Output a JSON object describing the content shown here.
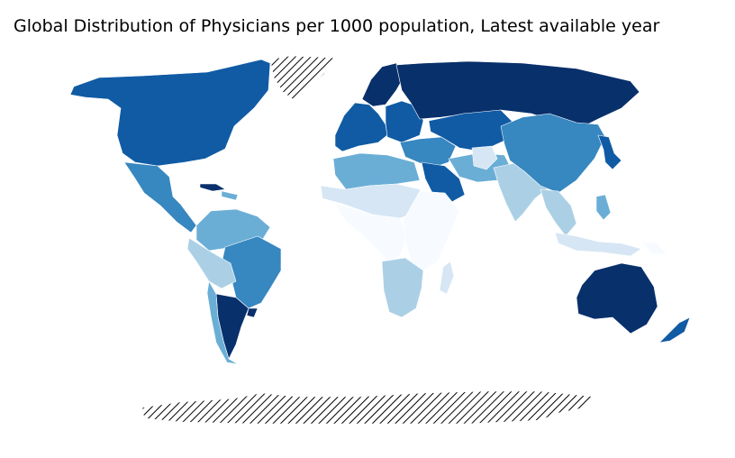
{
  "title": "Global Distribution of Physicians per 1000 population, Latest available year",
  "colors": {
    "level_1": "#f7fbff",
    "level_2": "#d6e6f4",
    "level_3": "#abd0e6",
    "level_4": "#6aaed6",
    "level_5": "#3787c0",
    "level_6": "#105ba4",
    "level_7": "#08306b",
    "no_data_hatch": "#000000"
  },
  "regions": [
    {
      "name": "North America",
      "level": 6
    },
    {
      "name": "Greenland",
      "level": 0
    },
    {
      "name": "Mexico & Central America",
      "level": 5
    },
    {
      "name": "Cuba",
      "level": 7
    },
    {
      "name": "Caribbean",
      "level": 4
    },
    {
      "name": "Northern South America",
      "level": 4
    },
    {
      "name": "Brazil",
      "level": 5
    },
    {
      "name": "Peru & Bolivia",
      "level": 3
    },
    {
      "name": "Argentina",
      "level": 7
    },
    {
      "name": "Chile",
      "level": 4
    },
    {
      "name": "Uruguay",
      "level": 7
    },
    {
      "name": "Western Europe",
      "level": 6
    },
    {
      "name": "Scandinavia",
      "level": 7
    },
    {
      "name": "Eastern Europe",
      "level": 6
    },
    {
      "name": "Russia",
      "level": 7
    },
    {
      "name": "Kazakhstan & Central Asia",
      "level": 6
    },
    {
      "name": "Turkey & Middle East",
      "level": 5
    },
    {
      "name": "Saudi Arabia",
      "level": 6
    },
    {
      "name": "Iran & Pakistan",
      "level": 4
    },
    {
      "name": "Afghanistan",
      "level": 2
    },
    {
      "name": "India",
      "level": 3
    },
    {
      "name": "China & Mongolia",
      "level": 5
    },
    {
      "name": "Korea & Japan",
      "level": 6
    },
    {
      "name": "Southeast Asia",
      "level": 3
    },
    {
      "name": "Indonesia",
      "level": 2
    },
    {
      "name": "Philippines",
      "level": 4
    },
    {
      "name": "North Africa",
      "level": 4
    },
    {
      "name": "Sahel",
      "level": 2
    },
    {
      "name": "West & Central Africa",
      "level": 1
    },
    {
      "name": "East Africa",
      "level": 1
    },
    {
      "name": "Southern Africa",
      "level": 3
    },
    {
      "name": "Madagascar",
      "level": 2
    },
    {
      "name": "Australia",
      "level": 7
    },
    {
      "name": "New Zealand",
      "level": 6
    },
    {
      "name": "Papua New Guinea",
      "level": 1
    },
    {
      "name": "Antarctica",
      "level": 0
    }
  ]
}
